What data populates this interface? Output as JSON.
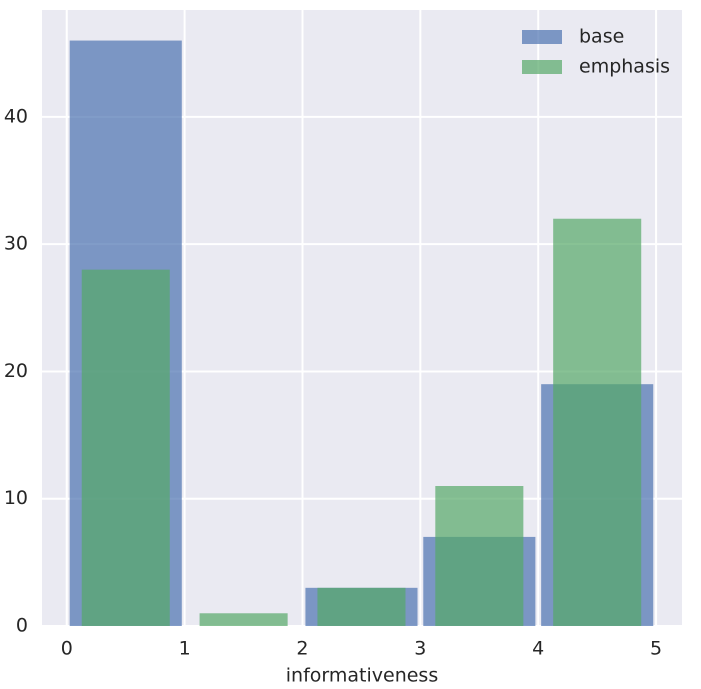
{
  "chart_data": {
    "type": "histogram",
    "xlabel": "informativeness",
    "bins": [
      0,
      1,
      2,
      3,
      4,
      5
    ],
    "series": [
      {
        "name": "base",
        "color": "#4c72b0",
        "values": [
          46,
          0,
          3,
          7,
          19
        ]
      },
      {
        "name": "emphasis",
        "color": "#55a868",
        "values": [
          28,
          1,
          3,
          11,
          32
        ]
      }
    ],
    "xlim": [
      -0.21,
      5.22
    ],
    "ylim": [
      0,
      48.4
    ],
    "xticks": [
      0,
      1,
      2,
      3,
      4,
      5
    ],
    "yticks": [
      0,
      10,
      20,
      30,
      40
    ],
    "grid": true,
    "legend": "upper right"
  }
}
